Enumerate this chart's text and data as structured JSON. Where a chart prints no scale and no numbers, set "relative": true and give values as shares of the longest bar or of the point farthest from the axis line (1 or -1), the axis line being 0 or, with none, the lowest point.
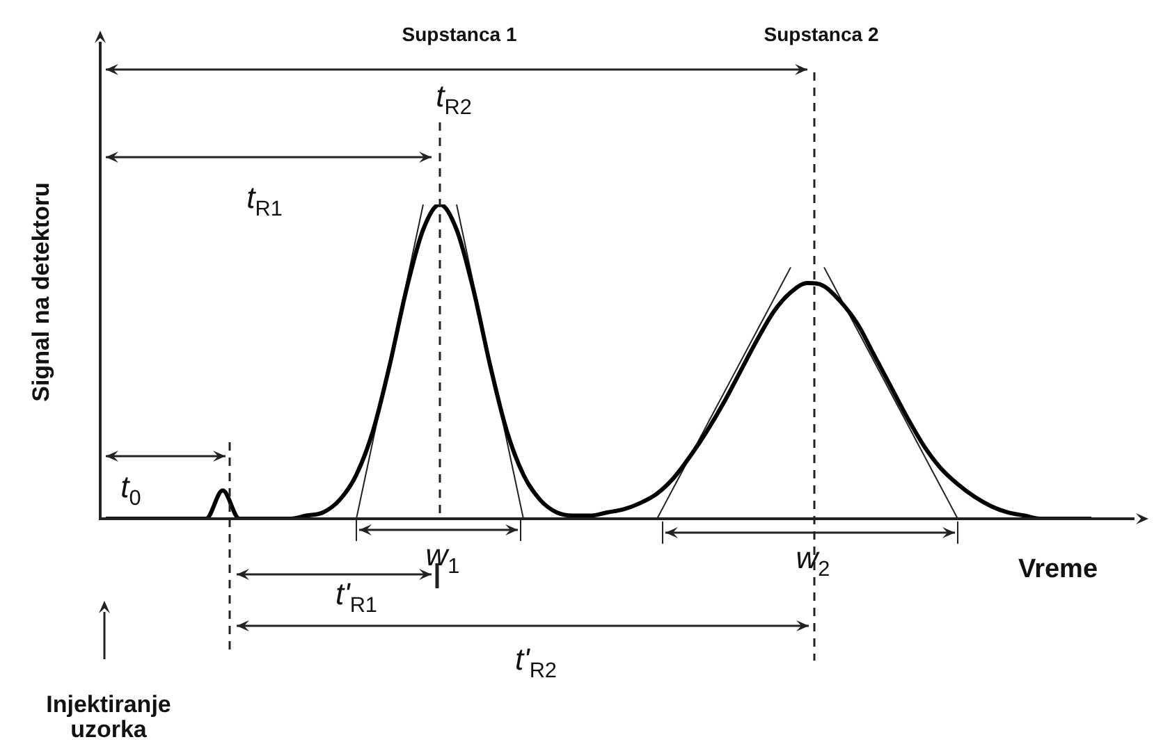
{
  "chart_data": {
    "type": "line",
    "xlabel": "Vreme",
    "ylabel": "Signal na detektoru",
    "relative": true,
    "annotations": [
      "Supstanca 1",
      "Supstanca 2",
      "t$_{R2}$",
      "t$_{R1}$",
      "t$_{0}$",
      "w$_{1}$",
      "t'$_{R1}$",
      "w$_{2}$",
      "t'$_{R2}$",
      "Injektiranje uzorka"
    ],
    "categories": [
      null,
      null,
      null,
      null,
      null,
      null,
      null,
      null,
      null,
      null,
      null,
      null,
      null,
      null,
      null,
      null,
      null,
      null,
      null,
      null,
      null,
      null,
      null,
      null,
      null,
      null,
      null,
      null,
      null,
      null,
      null,
      null,
      null,
      null,
      null,
      null,
      null,
      null,
      null,
      null,
      null,
      null,
      null,
      null,
      null,
      null,
      null,
      null,
      null,
      null,
      null,
      null,
      null,
      null,
      null,
      null,
      null,
      null,
      null,
      null
    ],
    "series": [
      {
        "color": "#000000",
        "values": [
          0,
          0,
          0,
          0,
          0,
          0,
          0,
          0.09,
          0,
          0,
          0,
          0,
          0.01,
          0.02,
          0.06,
          0.14,
          0.28,
          0.49,
          0.73,
          0.92,
          1,
          0.92,
          0.73,
          0.49,
          0.28,
          0.14,
          0.06,
          0.02,
          0.01,
          0.01,
          0.02,
          0.03,
          0.05,
          0.08,
          0.13,
          0.2,
          0.28,
          0.37,
          0.47,
          0.57,
          0.66,
          0.72,
          0.75,
          0.74,
          0.69,
          0.62,
          0.52,
          0.42,
          0.32,
          0.23,
          0.16,
          0.11,
          0.07,
          0.04,
          0.02,
          0.01,
          0,
          0,
          0,
          0
        ]
      },
      {
        "type": "line",
        "color": "#222222",
        "values": [
          null,
          null,
          null,
          null,
          null,
          null,
          null,
          null,
          null,
          null,
          null,
          null,
          null,
          null,
          null,
          0,
          0.25,
          0.5,
          0.75,
          1,
          null,
          null,
          null,
          null,
          null,
          null,
          null,
          null,
          null,
          null,
          null,
          null,
          null,
          null,
          null,
          null,
          null,
          null,
          null,
          null,
          null,
          null,
          null,
          null,
          null,
          null,
          null,
          null,
          null,
          null,
          null,
          null,
          null,
          null,
          null,
          null,
          null,
          null,
          null,
          null
        ]
      },
      {
        "type": "line",
        "color": "#222222",
        "values": [
          null,
          null,
          null,
          null,
          null,
          null,
          null,
          null,
          null,
          null,
          null,
          null,
          null,
          null,
          null,
          null,
          null,
          null,
          null,
          null,
          null,
          1,
          0.75,
          0.5,
          0.25,
          0,
          null,
          null,
          null,
          null,
          null,
          null,
          null,
          null,
          null,
          null,
          null,
          null,
          null,
          null,
          null,
          null,
          null,
          null,
          null,
          null,
          null,
          null,
          null,
          null,
          null,
          null,
          null,
          null,
          null,
          null,
          null,
          null,
          null,
          null
        ]
      },
      {
        "type": "line",
        "color": "#222222",
        "values": [
          null,
          null,
          null,
          null,
          null,
          null,
          null,
          null,
          null,
          null,
          null,
          null,
          null,
          null,
          null,
          null,
          null,
          null,
          null,
          null,
          null,
          null,
          null,
          null,
          null,
          null,
          null,
          null,
          null,
          null,
          null,
          null,
          null,
          0,
          0.1,
          0.2,
          0.3,
          0.4,
          0.5,
          0.6,
          0.7,
          0.8,
          null,
          null,
          null,
          null,
          null,
          null,
          null,
          null,
          null,
          null,
          null,
          null,
          null,
          null,
          null,
          null,
          null,
          null
        ]
      },
      {
        "type": "line",
        "color": "#222222",
        "values": [
          null,
          null,
          null,
          null,
          null,
          null,
          null,
          null,
          null,
          null,
          null,
          null,
          null,
          null,
          null,
          null,
          null,
          null,
          null,
          null,
          null,
          null,
          null,
          null,
          null,
          null,
          null,
          null,
          null,
          null,
          null,
          null,
          null,
          null,
          null,
          null,
          null,
          null,
          null,
          null,
          null,
          null,
          null,
          0.8,
          0.7,
          0.6,
          0.5,
          0.4,
          0.3,
          0.2,
          0.1,
          0,
          null,
          null,
          null,
          null,
          null,
          null,
          null,
          null
        ]
      }
    ]
  }
}
